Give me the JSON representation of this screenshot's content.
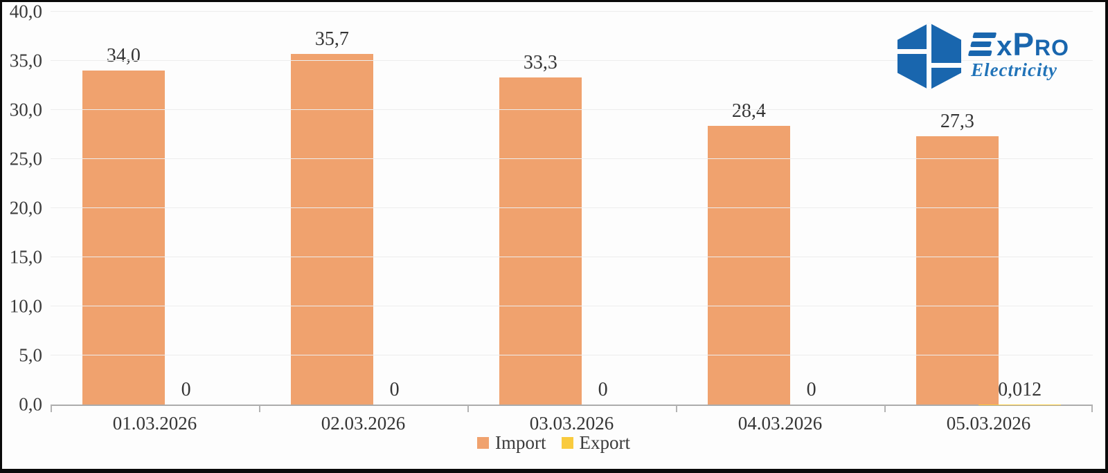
{
  "logo": {
    "brand": "ExPro",
    "brand_parts": {
      "x": "x",
      "p": "P",
      "ro": "ro"
    },
    "subtitle": "Electricity",
    "brand_color": "#1966AE",
    "subtitle_color": "#2173B8",
    "hexagon_color": "#1966AE"
  },
  "legend": {
    "items": [
      {
        "label": "Import",
        "color": "#F0A26E"
      },
      {
        "label": "Export",
        "color": "#F9CB3E"
      }
    ]
  },
  "chart_data": {
    "type": "bar",
    "title": "",
    "xlabel": "",
    "ylabel": "",
    "categories": [
      "01.03.2026",
      "02.03.2026",
      "03.03.2026",
      "04.03.2026",
      "05.03.2026"
    ],
    "series": [
      {
        "name": "Import",
        "color": "#F0A26E",
        "values": [
          34.0,
          35.7,
          33.3,
          28.4,
          27.3
        ],
        "labels": [
          "34,0",
          "35,7",
          "33,3",
          "28,4",
          "27,3"
        ]
      },
      {
        "name": "Export",
        "color": "#F9CB3E",
        "values": [
          0,
          0,
          0,
          0,
          0.012
        ],
        "labels": [
          "0",
          "0",
          "0",
          "0",
          "0,012"
        ]
      }
    ],
    "ylim": [
      0,
      40
    ],
    "ytick_step": 5,
    "ytick_labels": [
      "0,0",
      "5,0",
      "10,0",
      "15,0",
      "20,0",
      "25,0",
      "30,0",
      "35,0",
      "40,0"
    ],
    "grid": "horizontal-light",
    "legend_position": "bottom-center",
    "decimal_separator": ","
  }
}
